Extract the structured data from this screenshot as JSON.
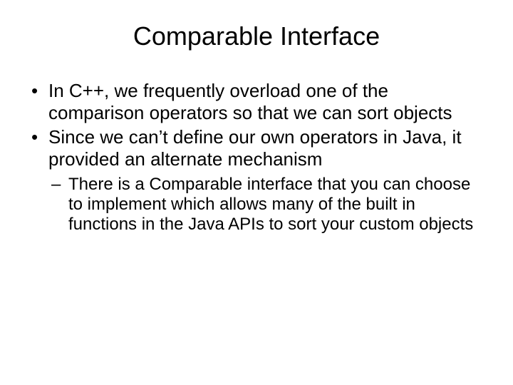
{
  "slide": {
    "title": "Comparable Interface",
    "title_fontsize": 36,
    "body_fontsize_l1": 26,
    "body_fontsize_l2": 24,
    "line_height_l1": 1.18,
    "line_height_l2": 1.18,
    "background_color": "#ffffff",
    "text_color": "#000000",
    "bullets": [
      {
        "text": "In C++, we frequently overload one of the comparison operators so that we can sort objects",
        "children": []
      },
      {
        "text": "Since we can’t define our own operators in Java, it provided an alternate mechanism",
        "children": [
          {
            "text": "There is a Comparable interface that you can choose to implement which allows many of the built in functions in the Java APIs to sort your custom objects"
          }
        ]
      }
    ]
  }
}
